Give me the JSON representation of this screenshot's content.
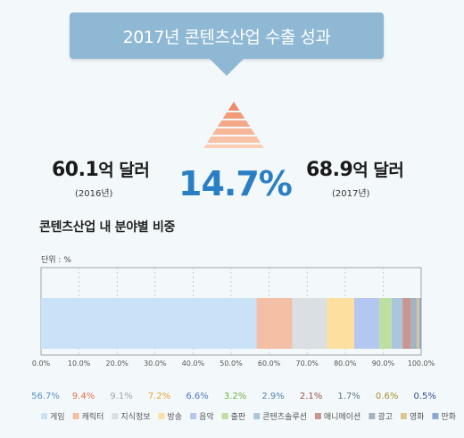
{
  "banner": {
    "title": "2017년 콘텐츠산업 수출 성과"
  },
  "left_value": {
    "number": "60.1",
    "unit": "억 달러",
    "year": "(2016년)"
  },
  "right_value": {
    "number": "68.9",
    "unit": "억 달러",
    "year": "(2017년)"
  },
  "growth": "14.7%",
  "colors": {
    "accent": "#2a7fc4",
    "banner": "#8fb8d4"
  },
  "chart_data": {
    "type": "bar",
    "orientation": "horizontal-stacked",
    "title": "콘텐츠산업 내 분야별 비중",
    "unit_label": "단위 : %",
    "xlim": [
      0,
      100
    ],
    "ticks": [
      "0.0%",
      "10.0%",
      "20.0%",
      "30.0%",
      "40.0%",
      "50.0%",
      "60.0%",
      "70.0%",
      "80.0%",
      "90.0%",
      "100.0%"
    ],
    "series": [
      {
        "name": "게임",
        "value": 56.7,
        "label": "56.7%",
        "color": "#c9e2f7",
        "label_color": "#5a8fc4"
      },
      {
        "name": "캐릭터",
        "value": 9.4,
        "label": "9.4%",
        "color": "#f3c0a6",
        "label_color": "#e0724a"
      },
      {
        "name": "지식정보",
        "value": 9.1,
        "label": "9.1%",
        "color": "#d9dfe2",
        "label_color": "#9aa6ad"
      },
      {
        "name": "방송",
        "value": 7.2,
        "label": "7.2%",
        "color": "#fde0a0",
        "label_color": "#e3a532"
      },
      {
        "name": "음악",
        "value": 6.6,
        "label": "6.6%",
        "color": "#b3c7f1",
        "label_color": "#4f76c9"
      },
      {
        "name": "출판",
        "value": 3.2,
        "label": "3.2%",
        "color": "#bedf9f",
        "label_color": "#73ad3f"
      },
      {
        "name": "콘텐츠솔루션",
        "value": 2.9,
        "label": "2.9%",
        "color": "#a9c6dc",
        "label_color": "#4f84b0"
      },
      {
        "name": "애니메이션",
        "value": 2.1,
        "label": "2.1%",
        "color": "#c8968f",
        "label_color": "#9e4f45"
      },
      {
        "name": "광고",
        "value": 1.7,
        "label": "1.7%",
        "color": "#a3b3c1",
        "label_color": "#627586"
      },
      {
        "name": "영화",
        "value": 0.6,
        "label": "0.6%",
        "color": "#d9c88e",
        "label_color": "#a68f2e"
      },
      {
        "name": "만화",
        "value": 0.5,
        "label": "0.5%",
        "color": "#8fa6d3",
        "label_color": "#2f4f9a"
      }
    ]
  }
}
